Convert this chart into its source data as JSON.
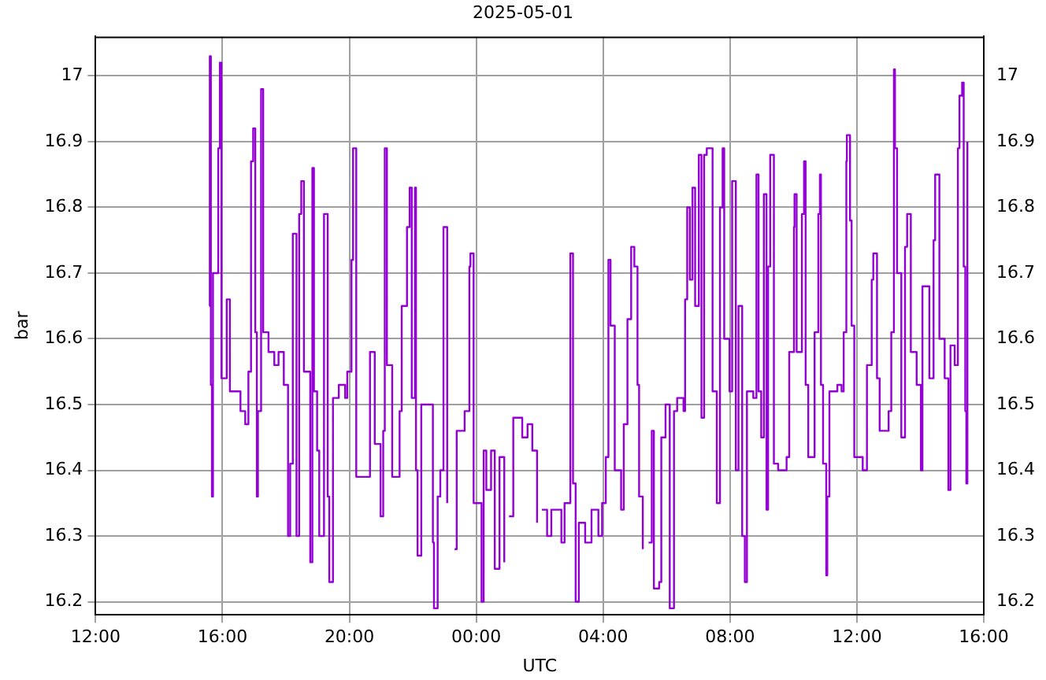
{
  "chart_data": {
    "type": "step",
    "title": "2025-05-01",
    "xlabel": "UTC",
    "ylabel": "bar",
    "xlim": [
      "2025-05-01T12:00",
      "2025-05-02T16:00"
    ],
    "xticks": [
      {
        "value": "2025-05-01T12:00",
        "label": "12:00"
      },
      {
        "value": "2025-05-01T16:00",
        "label": "16:00"
      },
      {
        "value": "2025-05-01T20:00",
        "label": "20:00"
      },
      {
        "value": "2025-05-02T00:00",
        "label": "00:00"
      },
      {
        "value": "2025-05-02T04:00",
        "label": "04:00"
      },
      {
        "value": "2025-05-02T08:00",
        "label": "08:00"
      },
      {
        "value": "2025-05-02T12:00",
        "label": "12:00"
      },
      {
        "value": "2025-05-02T16:00",
        "label": "16:00"
      }
    ],
    "ylim": [
      16.18,
      17.06
    ],
    "yticks": [
      16.2,
      16.3,
      16.4,
      16.5,
      16.6,
      16.7,
      16.8,
      16.9,
      17
    ],
    "y2lim": [
      16.18,
      17.06
    ],
    "y2ticks": [
      16.2,
      16.3,
      16.4,
      16.5,
      16.6,
      16.7,
      16.8,
      16.9,
      17
    ],
    "grid": true,
    "legend": false,
    "marker": "none",
    "line_style": "solid",
    "series": [
      {
        "color": "#9400d3",
        "x": [
          "2025-05-01T15:35",
          "2025-05-01T15:36",
          "2025-05-01T15:38",
          "2025-05-01T15:40",
          "2025-05-01T15:42",
          "2025-05-01T15:52",
          "2025-05-01T15:55",
          "2025-05-01T15:58",
          "2025-05-01T16:08",
          "2025-05-01T16:14",
          "2025-05-01T16:34",
          "2025-05-01T16:43",
          "2025-05-01T16:49",
          "2025-05-01T16:54",
          "2025-05-01T16:58",
          "2025-05-01T17:02",
          "2025-05-01T17:05",
          "2025-05-01T17:07",
          "2025-05-01T17:13",
          "2025-05-01T17:17",
          "2025-05-01T17:27",
          "2025-05-01T17:38",
          "2025-05-01T17:46",
          "2025-05-01T17:56",
          "2025-05-01T18:04",
          "2025-05-01T18:08",
          "2025-05-01T18:13",
          "2025-05-01T18:20",
          "2025-05-01T18:25",
          "2025-05-01T18:29",
          "2025-05-01T18:34",
          "2025-05-01T18:46",
          "2025-05-01T18:50",
          "2025-05-01T18:53",
          "2025-05-01T18:59",
          "2025-05-01T19:03",
          "2025-05-01T19:12",
          "2025-05-01T19:19",
          "2025-05-01T19:22",
          "2025-05-01T19:29",
          "2025-05-01T19:40",
          "2025-05-01T19:52",
          "2025-05-01T19:56",
          "2025-05-01T20:04",
          "2025-05-01T20:07",
          "2025-05-01T20:13",
          "2025-05-01T20:30",
          "2025-05-01T20:39",
          "2025-05-01T20:48",
          "2025-05-01T20:59",
          "2025-05-01T21:04",
          "2025-05-01T21:07",
          "2025-05-01T21:11",
          "2025-05-01T21:21",
          "2025-05-01T21:35",
          "2025-05-01T21:39",
          "2025-05-01T21:49",
          "2025-05-01T21:54",
          "2025-05-01T21:58",
          "2025-05-01T22:04",
          "2025-05-01T22:06",
          "2025-05-01T22:09",
          "2025-05-01T22:16",
          "2025-05-01T22:31",
          "2025-05-01T22:38",
          "2025-05-01T22:40",
          "2025-05-01T22:47",
          "2025-05-01T22:52",
          "2025-05-01T22:58",
          "2025-05-01T23:05",
          "2025-05-01T23:14",
          "2025-05-01T23:19",
          "2025-05-01T23:23",
          "2025-05-01T23:38",
          "2025-05-01T23:47",
          "2025-05-01T23:49",
          "2025-05-01T23:55",
          "2025-05-02T00:05",
          "2025-05-02T00:10",
          "2025-05-02T00:14",
          "2025-05-02T00:19",
          "2025-05-02T00:28",
          "2025-05-02T00:35",
          "2025-05-02T00:44",
          "2025-05-02T00:53",
          "2025-05-02T00:58",
          "2025-05-02T01:02",
          "2025-05-02T01:10",
          "2025-05-02T01:19",
          "2025-05-02T01:27",
          "2025-05-02T01:37",
          "2025-05-02T01:46",
          "2025-05-02T01:55",
          "2025-05-02T01:58",
          "2025-05-02T02:04",
          "2025-05-02T02:14",
          "2025-05-02T02:22",
          "2025-05-02T02:36",
          "2025-05-02T02:41",
          "2025-05-02T02:47",
          "2025-05-02T02:58",
          "2025-05-02T03:03",
          "2025-05-02T03:08",
          "2025-05-02T03:14",
          "2025-05-02T03:26",
          "2025-05-02T03:38",
          "2025-05-02T03:51",
          "2025-05-02T03:58",
          "2025-05-02T04:05",
          "2025-05-02T04:10",
          "2025-05-02T04:14",
          "2025-05-02T04:22",
          "2025-05-02T04:34",
          "2025-05-02T04:39",
          "2025-05-02T04:46",
          "2025-05-02T04:53",
          "2025-05-02T04:59",
          "2025-05-02T05:05",
          "2025-05-02T05:08",
          "2025-05-02T05:15",
          "2025-05-02T05:22",
          "2025-05-02T05:26",
          "2025-05-02T05:32",
          "2025-05-02T05:36",
          "2025-05-02T05:46",
          "2025-05-02T05:50",
          "2025-05-02T05:58",
          "2025-05-02T06:06",
          "2025-05-02T06:14",
          "2025-05-02T06:20",
          "2025-05-02T06:32",
          "2025-05-02T06:35",
          "2025-05-02T06:39",
          "2025-05-02T06:44",
          "2025-05-02T06:49",
          "2025-05-02T06:54",
          "2025-05-02T07:01",
          "2025-05-02T07:06",
          "2025-05-02T07:11",
          "2025-05-02T07:16",
          "2025-05-02T07:27",
          "2025-05-02T07:35",
          "2025-05-02T07:41",
          "2025-05-02T07:46",
          "2025-05-02T07:49",
          "2025-05-02T07:59",
          "2025-05-02T08:04",
          "2025-05-02T08:11",
          "2025-05-02T08:16",
          "2025-05-02T08:23",
          "2025-05-02T08:28",
          "2025-05-02T08:32",
          "2025-05-02T08:44",
          "2025-05-02T08:50",
          "2025-05-02T08:54",
          "2025-05-02T08:59",
          "2025-05-02T09:04",
          "2025-05-02T09:09",
          "2025-05-02T09:12",
          "2025-05-02T09:16",
          "2025-05-02T09:23",
          "2025-05-02T09:31",
          "2025-05-02T09:47",
          "2025-05-02T09:52",
          "2025-05-02T10:01",
          "2025-05-02T10:02",
          "2025-05-02T10:06",
          "2025-05-02T10:16",
          "2025-05-02T10:20",
          "2025-05-02T10:23",
          "2025-05-02T10:28",
          "2025-05-02T10:40",
          "2025-05-02T10:47",
          "2025-05-02T10:50",
          "2025-05-02T10:52",
          "2025-05-02T10:56",
          "2025-05-02T11:02",
          "2025-05-02T11:04",
          "2025-05-02T11:08",
          "2025-05-02T11:23",
          "2025-05-02T11:31",
          "2025-05-02T11:35",
          "2025-05-02T11:40",
          "2025-05-02T11:41",
          "2025-05-02T11:47",
          "2025-05-02T11:50",
          "2025-05-02T11:55",
          "2025-05-02T12:11",
          "2025-05-02T12:19",
          "2025-05-02T12:28",
          "2025-05-02T12:31",
          "2025-05-02T12:38",
          "2025-05-02T12:43",
          "2025-05-02T13:00",
          "2025-05-02T13:05",
          "2025-05-02T13:10",
          "2025-05-02T13:12",
          "2025-05-02T13:16",
          "2025-05-02T13:24",
          "2025-05-02T13:31",
          "2025-05-02T13:35",
          "2025-05-02T13:42",
          "2025-05-02T13:53",
          "2025-05-02T14:01",
          "2025-05-02T14:04",
          "2025-05-02T14:17",
          "2025-05-02T14:25",
          "2025-05-02T14:28",
          "2025-05-02T14:36",
          "2025-05-02T14:46",
          "2025-05-02T14:53",
          "2025-05-02T14:57",
          "2025-05-02T15:05",
          "2025-05-02T15:11",
          "2025-05-02T15:14",
          "2025-05-02T15:19",
          "2025-05-02T15:22",
          "2025-05-02T15:25",
          "2025-05-02T15:27",
          "2025-05-02T15:29",
          "2025-05-02T15:32",
          "2025-05-02T15:34"
        ],
        "values": [
          16.65,
          17.03,
          16.53,
          16.36,
          16.7,
          16.89,
          17.02,
          16.54,
          16.66,
          16.52,
          16.49,
          16.47,
          16.55,
          16.87,
          16.92,
          16.61,
          16.36,
          16.49,
          16.98,
          16.61,
          16.58,
          16.56,
          16.58,
          16.53,
          16.3,
          16.41,
          16.76,
          16.3,
          16.79,
          16.84,
          16.55,
          16.26,
          16.86,
          16.52,
          16.43,
          16.3,
          16.79,
          16.36,
          16.23,
          16.51,
          16.53,
          16.51,
          16.55,
          16.72,
          16.89,
          16.39,
          16.39,
          16.58,
          16.44,
          16.33,
          16.46,
          16.89,
          16.56,
          16.39,
          16.49,
          16.65,
          16.77,
          16.83,
          16.51,
          16.83,
          16.4,
          16.27,
          16.5,
          16.5,
          16.29,
          16.19,
          16.36,
          16.4,
          16.77,
          16.35,
          null,
          16.28,
          16.46,
          16.49,
          16.71,
          16.73,
          16.35,
          16.35,
          16.2,
          16.43,
          16.37,
          16.43,
          16.25,
          16.42,
          16.26,
          null,
          16.33,
          16.48,
          16.48,
          16.45,
          16.47,
          16.43,
          16.32,
          null,
          16.34,
          16.3,
          16.34,
          16.34,
          16.29,
          16.35,
          16.73,
          16.38,
          16.2,
          16.32,
          16.29,
          16.34,
          16.3,
          16.35,
          16.42,
          16.72,
          16.62,
          16.4,
          16.34,
          16.47,
          16.63,
          16.74,
          16.71,
          16.53,
          16.36,
          16.28,
          null,
          16.29,
          16.46,
          16.22,
          16.23,
          16.45,
          16.5,
          16.19,
          16.49,
          16.51,
          16.49,
          16.66,
          16.8,
          16.69,
          16.83,
          16.65,
          16.88,
          16.48,
          16.88,
          16.89,
          16.52,
          16.35,
          16.8,
          16.89,
          16.6,
          16.52,
          16.84,
          16.4,
          16.65,
          16.3,
          16.23,
          16.52,
          16.51,
          16.85,
          16.52,
          16.45,
          16.82,
          16.34,
          16.71,
          16.88,
          16.41,
          16.4,
          16.42,
          16.58,
          16.77,
          16.82,
          16.58,
          16.79,
          16.87,
          16.53,
          16.42,
          16.61,
          16.79,
          16.85,
          16.53,
          16.41,
          16.24,
          16.36,
          16.52,
          16.53,
          16.52,
          16.61,
          16.87,
          16.91,
          16.78,
          16.62,
          16.42,
          16.4,
          16.56,
          16.69,
          16.73,
          16.54,
          16.46,
          16.49,
          16.61,
          17.01,
          16.89,
          16.7,
          16.45,
          16.74,
          16.79,
          16.58,
          16.53,
          16.4,
          16.68,
          16.54,
          16.75,
          16.85,
          16.6,
          16.54,
          16.37,
          16.59,
          16.56,
          16.89,
          16.97,
          16.99,
          16.71,
          16.49,
          16.38,
          16.9,
          null,
          16.73
        ]
      }
    ]
  }
}
